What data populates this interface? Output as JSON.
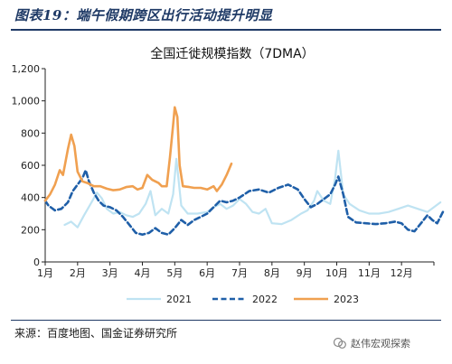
{
  "figure": {
    "title": "图表19：端午假期跨区出行活动提升明显",
    "source": "来源：百度地图、国金证券研究所",
    "watermark": "赵伟宏观探索"
  },
  "colors": {
    "s2021": "#bfe3f2",
    "s2022": "#1f5fa8",
    "s2023": "#f0a050",
    "axis": "#222222",
    "header": "#1f3a66"
  },
  "chart_data": {
    "type": "line",
    "title": "全国迁徙规模指数（7DMA）",
    "xlabel": "",
    "ylabel": "",
    "x_ticks": [
      "1月",
      "2月",
      "3月",
      "4月",
      "5月",
      "6月",
      "7月",
      "8月",
      "9月",
      "10月",
      "11月",
      "12月"
    ],
    "y_ticks": [
      "0",
      "200",
      "400",
      "600",
      "800",
      "1,000",
      "1,200"
    ],
    "ylim": [
      0,
      1200
    ],
    "xlim": [
      1,
      13
    ],
    "grid": false,
    "legend": "bottom",
    "series": [
      {
        "name": "2021",
        "style": "solid-light",
        "points": [
          [
            1.6,
            230
          ],
          [
            1.8,
            250
          ],
          [
            2.0,
            215
          ],
          [
            2.2,
            290
          ],
          [
            2.4,
            360
          ],
          [
            2.6,
            430
          ],
          [
            2.75,
            395
          ],
          [
            2.9,
            330
          ],
          [
            3.1,
            300
          ],
          [
            3.3,
            310
          ],
          [
            3.5,
            290
          ],
          [
            3.7,
            280
          ],
          [
            3.9,
            300
          ],
          [
            4.1,
            360
          ],
          [
            4.25,
            440
          ],
          [
            4.4,
            290
          ],
          [
            4.6,
            330
          ],
          [
            4.8,
            300
          ],
          [
            4.95,
            420
          ],
          [
            5.05,
            640
          ],
          [
            5.2,
            350
          ],
          [
            5.4,
            300
          ],
          [
            5.7,
            300
          ],
          [
            6.0,
            310
          ],
          [
            6.2,
            340
          ],
          [
            6.4,
            360
          ],
          [
            6.6,
            330
          ],
          [
            6.8,
            350
          ],
          [
            7.0,
            390
          ],
          [
            7.2,
            360
          ],
          [
            7.4,
            310
          ],
          [
            7.6,
            300
          ],
          [
            7.8,
            330
          ],
          [
            8.0,
            240
          ],
          [
            8.3,
            235
          ],
          [
            8.6,
            260
          ],
          [
            8.9,
            300
          ],
          [
            9.1,
            320
          ],
          [
            9.3,
            380
          ],
          [
            9.4,
            440
          ],
          [
            9.6,
            380
          ],
          [
            9.8,
            360
          ],
          [
            9.95,
            520
          ],
          [
            10.05,
            690
          ],
          [
            10.2,
            420
          ],
          [
            10.4,
            360
          ],
          [
            10.7,
            320
          ],
          [
            11.0,
            300
          ],
          [
            11.3,
            300
          ],
          [
            11.6,
            310
          ],
          [
            11.9,
            330
          ],
          [
            12.2,
            350
          ],
          [
            12.5,
            330
          ],
          [
            12.8,
            310
          ],
          [
            13.0,
            340
          ],
          [
            13.2,
            370
          ]
        ]
      },
      {
        "name": "2022",
        "style": "dashed",
        "points": [
          [
            1.0,
            380
          ],
          [
            1.1,
            350
          ],
          [
            1.3,
            320
          ],
          [
            1.5,
            330
          ],
          [
            1.7,
            370
          ],
          [
            1.85,
            440
          ],
          [
            2.0,
            480
          ],
          [
            2.15,
            520
          ],
          [
            2.25,
            570
          ],
          [
            2.35,
            500
          ],
          [
            2.5,
            430
          ],
          [
            2.65,
            380
          ],
          [
            2.8,
            350
          ],
          [
            3.0,
            340
          ],
          [
            3.2,
            320
          ],
          [
            3.4,
            280
          ],
          [
            3.6,
            230
          ],
          [
            3.8,
            180
          ],
          [
            4.0,
            170
          ],
          [
            4.2,
            180
          ],
          [
            4.4,
            210
          ],
          [
            4.6,
            180
          ],
          [
            4.8,
            170
          ],
          [
            5.0,
            210
          ],
          [
            5.2,
            260
          ],
          [
            5.4,
            230
          ],
          [
            5.6,
            260
          ],
          [
            5.8,
            280
          ],
          [
            6.0,
            300
          ],
          [
            6.2,
            340
          ],
          [
            6.4,
            380
          ],
          [
            6.6,
            370
          ],
          [
            6.8,
            380
          ],
          [
            7.0,
            400
          ],
          [
            7.3,
            440
          ],
          [
            7.6,
            450
          ],
          [
            7.9,
            430
          ],
          [
            8.2,
            460
          ],
          [
            8.5,
            480
          ],
          [
            8.8,
            450
          ],
          [
            9.0,
            390
          ],
          [
            9.2,
            340
          ],
          [
            9.4,
            360
          ],
          [
            9.6,
            390
          ],
          [
            9.8,
            420
          ],
          [
            9.95,
            480
          ],
          [
            10.05,
            530
          ],
          [
            10.2,
            420
          ],
          [
            10.35,
            280
          ],
          [
            10.6,
            245
          ],
          [
            10.9,
            240
          ],
          [
            11.2,
            235
          ],
          [
            11.5,
            240
          ],
          [
            11.8,
            250
          ],
          [
            12.0,
            240
          ],
          [
            12.2,
            200
          ],
          [
            12.4,
            190
          ],
          [
            12.6,
            240
          ],
          [
            12.8,
            290
          ],
          [
            12.95,
            260
          ],
          [
            13.1,
            240
          ],
          [
            13.3,
            320
          ]
        ]
      },
      {
        "name": "2023",
        "style": "solid",
        "points": [
          [
            1.0,
            380
          ],
          [
            1.15,
            420
          ],
          [
            1.3,
            480
          ],
          [
            1.45,
            570
          ],
          [
            1.55,
            540
          ],
          [
            1.7,
            700
          ],
          [
            1.8,
            790
          ],
          [
            1.9,
            720
          ],
          [
            2.0,
            560
          ],
          [
            2.15,
            500
          ],
          [
            2.3,
            490
          ],
          [
            2.5,
            470
          ],
          [
            2.7,
            470
          ],
          [
            2.9,
            455
          ],
          [
            3.1,
            445
          ],
          [
            3.3,
            450
          ],
          [
            3.5,
            465
          ],
          [
            3.7,
            470
          ],
          [
            3.85,
            450
          ],
          [
            4.0,
            460
          ],
          [
            4.15,
            540
          ],
          [
            4.3,
            510
          ],
          [
            4.5,
            490
          ],
          [
            4.6,
            470
          ],
          [
            4.75,
            470
          ],
          [
            4.85,
            650
          ],
          [
            4.95,
            850
          ],
          [
            5.0,
            960
          ],
          [
            5.08,
            900
          ],
          [
            5.15,
            600
          ],
          [
            5.25,
            470
          ],
          [
            5.45,
            465
          ],
          [
            5.6,
            460
          ],
          [
            5.8,
            460
          ],
          [
            6.0,
            450
          ],
          [
            6.2,
            470
          ],
          [
            6.3,
            440
          ],
          [
            6.45,
            480
          ],
          [
            6.6,
            540
          ],
          [
            6.75,
            610
          ]
        ]
      }
    ]
  }
}
